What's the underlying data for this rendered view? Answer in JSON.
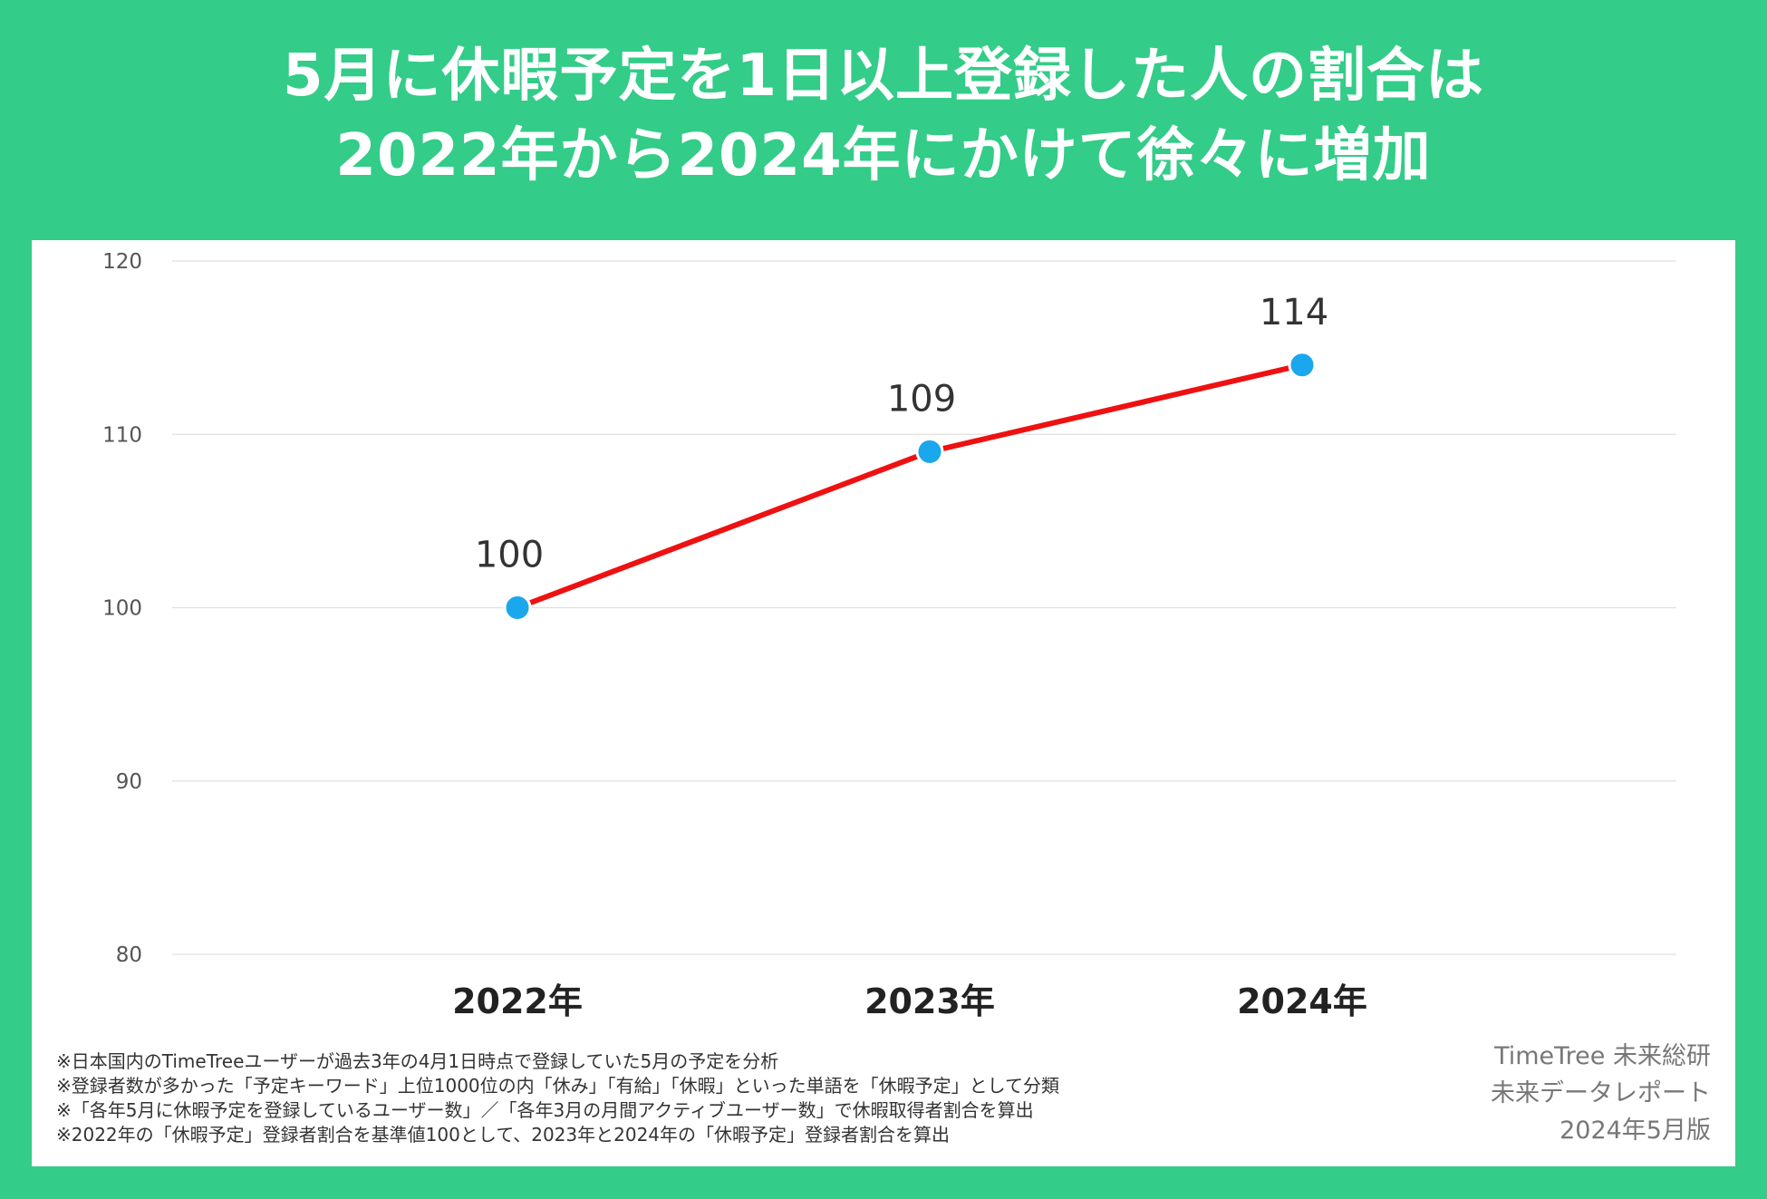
{
  "title_lines": [
    "5月に休暇予定を1日以上登録した人の割合は",
    "2022年から2024年にかけて徐々に増加"
  ],
  "chart_data": {
    "type": "line",
    "categories": [
      "2022年",
      "2023年",
      "2024年"
    ],
    "series": [
      {
        "values": [
          100,
          109,
          114
        ],
        "line_color": "#ee1111",
        "marker_color": "#1aa7ee"
      }
    ],
    "data_labels": [
      "100",
      "109",
      "114"
    ],
    "ylim": [
      80,
      120
    ],
    "yticks": [
      80,
      90,
      100,
      110,
      120
    ],
    "ytick_labels": [
      "80",
      "90",
      "100",
      "110",
      "120"
    ],
    "grid": true
  },
  "notes": [
    "※日本国内のTimeTreeユーザーが過去3年の4月1日時点で登録していた5月の予定を分析",
    "※登録者数が多かった「予定キーワード」上位1000位の内「休み」「有給」「休暇」といった単語を「休暇予定」として分類",
    "※「各年5月に休暇予定を登録しているユーザー数」／「各年3月の月間アクティブユーザー数」で休暇取得者割合を算出",
    "※2022年の「休暇予定」登録者割合を基準値100として、2023年と2024年の「休暇予定」登録者割合を算出"
  ],
  "credit": {
    "org": "TimeTree 未来総研",
    "report": "未来データレポート",
    "edition": "2024年5月版"
  },
  "colors": {
    "background": "#33cc88",
    "panel": "#ffffff",
    "gridline": "#e0e0e0"
  }
}
